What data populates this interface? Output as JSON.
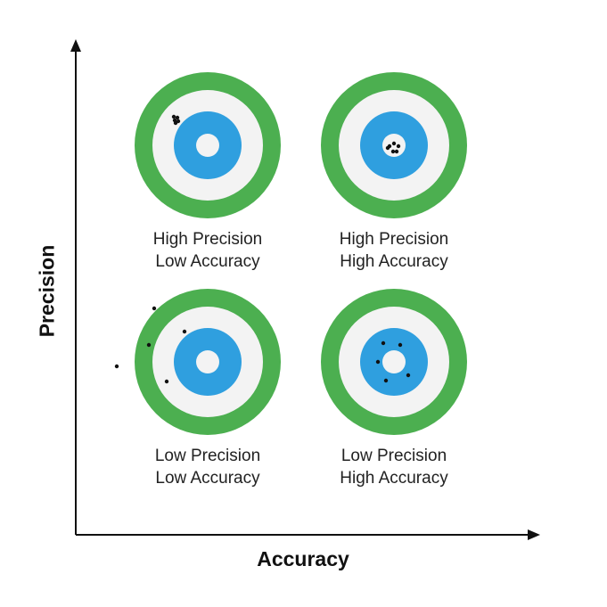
{
  "colors": {
    "outer_ring": "#4caf50",
    "light_ring": "#f3f3f3",
    "blue_ring": "#2f9fdf",
    "center": "#f3f3f3",
    "shot": "#111111",
    "axis": "#111111"
  },
  "axes": {
    "x_title": "Accuracy",
    "y_title": "Precision"
  },
  "targets": [
    {
      "line1": "High Precision",
      "line2": "Low Accuracy"
    },
    {
      "line1": "High Precision",
      "line2": "High Accuracy"
    },
    {
      "line1": "Low Precision",
      "line2": "Low Accuracy"
    },
    {
      "line1": "Low Precision",
      "line2": "High Accuracy"
    }
  ]
}
